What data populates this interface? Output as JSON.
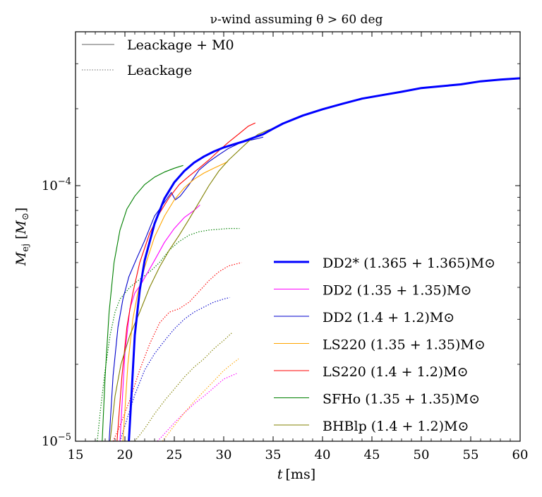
{
  "chart_data": {
    "type": "line",
    "title": "ν-wind assuming θ > 60 deg",
    "xlabel": "t [ms]",
    "ylabel": "M_ej [M⊙]",
    "ylabel_main": "M",
    "ylabel_sub": "ej",
    "ylabel_unit_open": "[",
    "ylabel_unit_main": "M",
    "ylabel_unit_sub": "⊙",
    "ylabel_unit_close": "]",
    "xlim": [
      15,
      60
    ],
    "ylim": [
      1e-05,
      0.0004
    ],
    "yscale": "log",
    "x_ticks": [
      15,
      20,
      25,
      30,
      35,
      40,
      45,
      50,
      55,
      60
    ],
    "y_ticks": [
      {
        "value": 1e-05,
        "base": "10",
        "exp": "−5"
      },
      {
        "value": 0.0001,
        "base": "10",
        "exp": "−4"
      }
    ],
    "style_legend": {
      "placement": "upper-left",
      "entries": [
        {
          "label": "Leackage + M0",
          "style": "solid",
          "color": "#808080"
        },
        {
          "label": "Leackage",
          "style": "dotted",
          "color": "#808080"
        }
      ]
    },
    "legend_placement": "lower-right",
    "series": [
      {
        "name": "DD2* (1.365 + 1.365)M⊙",
        "color": "#0000ff",
        "bold": true,
        "solid": [
          [
            20.4,
            1e-05
          ],
          [
            20.7,
            1.6e-05
          ],
          [
            21.0,
            2.6e-05
          ],
          [
            21.5,
            3.9e-05
          ],
          [
            22.0,
            5.1e-05
          ],
          [
            23.0,
            7.1e-05
          ],
          [
            24.0,
            8.9e-05
          ],
          [
            25.0,
            0.000103
          ],
          [
            26.0,
            0.000114
          ],
          [
            27.0,
            0.000123
          ],
          [
            28.0,
            0.00013
          ],
          [
            29.0,
            0.000136
          ],
          [
            30.0,
            0.000141
          ],
          [
            31.0,
            0.000145
          ],
          [
            32.0,
            0.000149
          ],
          [
            33.0,
            0.000154
          ],
          [
            34.0,
            0.000159
          ],
          [
            35.0,
            0.000167
          ],
          [
            36.0,
            0.000175
          ],
          [
            38.0,
            0.000188
          ],
          [
            40.0,
            0.000199
          ],
          [
            42.0,
            0.000209
          ],
          [
            44.0,
            0.000219
          ],
          [
            46.0,
            0.000226
          ],
          [
            48.0,
            0.000233
          ],
          [
            50.0,
            0.000241
          ],
          [
            52.0,
            0.000245
          ],
          [
            54.0,
            0.000249
          ],
          [
            56.0,
            0.000256
          ],
          [
            58.0,
            0.00026
          ],
          [
            60.0,
            0.000263
          ]
        ],
        "dotted": []
      },
      {
        "name": "DD2 (1.35 + 1.35)M⊙",
        "color": "#ff00ff",
        "bold": false,
        "solid": [
          [
            19.5,
            1e-05
          ],
          [
            20.0,
            2.2e-05
          ],
          [
            20.5,
            3.3e-05
          ],
          [
            21.0,
            3.8e-05
          ],
          [
            21.6,
            4.1e-05
          ],
          [
            22.2,
            4.5e-05
          ],
          [
            23.0,
            5.1e-05
          ],
          [
            24.0,
            6e-05
          ],
          [
            25.0,
            6.8e-05
          ],
          [
            26.0,
            7.5e-05
          ],
          [
            27.0,
            8e-05
          ],
          [
            27.6,
            8.4e-05
          ]
        ],
        "dotted": [
          [
            23.3,
            1e-05
          ],
          [
            24.0,
            1.07e-05
          ],
          [
            25.0,
            1.18e-05
          ],
          [
            26.0,
            1.29e-05
          ],
          [
            27.0,
            1.4e-05
          ],
          [
            28.0,
            1.5e-05
          ],
          [
            29.0,
            1.62e-05
          ],
          [
            30.0,
            1.75e-05
          ],
          [
            31.3,
            1.84e-05
          ]
        ]
      },
      {
        "name": "DD2 (1.4 + 1.2)M⊙",
        "color": "#0000cc",
        "bold": false,
        "solid": [
          [
            18.4,
            1e-05
          ],
          [
            18.8,
            1.8e-05
          ],
          [
            19.3,
            2.8e-05
          ],
          [
            19.8,
            3.6e-05
          ],
          [
            20.4,
            4.4e-05
          ],
          [
            21.2,
            5.2e-05
          ],
          [
            22.0,
            6.1e-05
          ],
          [
            23.0,
            7.6e-05
          ],
          [
            24.0,
            8.6e-05
          ],
          [
            24.7,
            9.4e-05
          ],
          [
            25.1,
            8.8e-05
          ],
          [
            25.6,
            9.1e-05
          ],
          [
            26.5,
            0.000101
          ],
          [
            27.5,
            0.000115
          ],
          [
            28.5,
            0.000124
          ],
          [
            29.5,
            0.000132
          ],
          [
            30.5,
            0.00014
          ],
          [
            31.5,
            0.000146
          ],
          [
            32.5,
            0.00015
          ],
          [
            33.5,
            0.000153
          ],
          [
            34.0,
            0.000155
          ]
        ],
        "dotted": [
          [
            19.5,
            1e-05
          ],
          [
            20.0,
            1.15e-05
          ],
          [
            21.0,
            1.52e-05
          ],
          [
            22.0,
            1.9e-05
          ],
          [
            23.0,
            2.2e-05
          ],
          [
            24.0,
            2.47e-05
          ],
          [
            25.0,
            2.75e-05
          ],
          [
            26.0,
            3e-05
          ],
          [
            27.0,
            3.2e-05
          ],
          [
            28.0,
            3.35e-05
          ],
          [
            29.0,
            3.5e-05
          ],
          [
            30.0,
            3.6e-05
          ],
          [
            30.6,
            3.65e-05
          ]
        ]
      },
      {
        "name": "LS220 (1.35 + 1.35)M⊙",
        "color": "#ffa500",
        "bold": false,
        "solid": [
          [
            19.8,
            1e-05
          ],
          [
            20.3,
            2e-05
          ],
          [
            20.8,
            3e-05
          ],
          [
            21.3,
            3.8e-05
          ],
          [
            22.0,
            4.8e-05
          ],
          [
            23.0,
            6.3e-05
          ],
          [
            24.0,
            7.6e-05
          ],
          [
            25.0,
            8.8e-05
          ],
          [
            26.0,
            9.8e-05
          ],
          [
            27.0,
            0.000106
          ],
          [
            28.0,
            0.000112
          ],
          [
            29.0,
            0.000117
          ],
          [
            30.0,
            0.000122
          ],
          [
            30.4,
            0.000124
          ]
        ],
        "dotted": [
          [
            23.8,
            1e-05
          ],
          [
            25.0,
            1.15e-05
          ],
          [
            26.0,
            1.29e-05
          ],
          [
            27.0,
            1.43e-05
          ],
          [
            28.0,
            1.57e-05
          ],
          [
            29.0,
            1.72e-05
          ],
          [
            30.0,
            1.89e-05
          ],
          [
            31.0,
            2.03e-05
          ],
          [
            31.5,
            2.1e-05
          ]
        ]
      },
      {
        "name": "LS220 (1.4 + 1.2)M⊙",
        "color": "#ff0000",
        "bold": false,
        "solid": [
          [
            19.2,
            1e-05
          ],
          [
            19.7,
            1.8e-05
          ],
          [
            20.2,
            2.8e-05
          ],
          [
            20.8,
            3.8e-05
          ],
          [
            21.5,
            5e-05
          ],
          [
            22.5,
            6.5e-05
          ],
          [
            23.5,
            7.8e-05
          ],
          [
            24.5,
            9e-05
          ],
          [
            25.5,
            0.000101
          ],
          [
            26.5,
            0.000109
          ],
          [
            27.5,
            0.000117
          ],
          [
            28.5,
            0.000126
          ],
          [
            29.5,
            0.000137
          ],
          [
            30.5,
            0.000148
          ],
          [
            31.5,
            0.000159
          ],
          [
            32.5,
            0.000171
          ],
          [
            33.2,
            0.000176
          ]
        ],
        "dotted": [
          [
            18.8,
            1e-05
          ],
          [
            19.5,
            1.15e-05
          ],
          [
            20.5,
            1.45e-05
          ],
          [
            21.5,
            1.9e-05
          ],
          [
            22.5,
            2.4e-05
          ],
          [
            23.5,
            2.9e-05
          ],
          [
            24.5,
            3.2e-05
          ],
          [
            25.5,
            3.3e-05
          ],
          [
            26.5,
            3.5e-05
          ],
          [
            27.5,
            3.85e-05
          ],
          [
            28.5,
            4.25e-05
          ],
          [
            29.5,
            4.6e-05
          ],
          [
            30.5,
            4.85e-05
          ],
          [
            31.8,
            5e-05
          ]
        ]
      },
      {
        "name": "SFHo (1.35 + 1.35)M⊙",
        "color": "#008000",
        "bold": false,
        "solid": [
          [
            17.7,
            1e-05
          ],
          [
            18.0,
            1.8e-05
          ],
          [
            18.4,
            3.2e-05
          ],
          [
            18.9,
            5e-05
          ],
          [
            19.5,
            6.7e-05
          ],
          [
            20.2,
            8.1e-05
          ],
          [
            21.0,
            9.1e-05
          ],
          [
            22.0,
            0.000101
          ],
          [
            23.0,
            0.000108
          ],
          [
            24.0,
            0.000113
          ],
          [
            25.0,
            0.000117
          ],
          [
            25.9,
            0.00012
          ]
        ],
        "dotted": [
          [
            17.2,
            1e-05
          ],
          [
            17.5,
            1.3e-05
          ],
          [
            18.0,
            1.9e-05
          ],
          [
            18.5,
            2.6e-05
          ],
          [
            19.0,
            3.2e-05
          ],
          [
            19.5,
            3.6e-05
          ],
          [
            20.5,
            4e-05
          ],
          [
            21.5,
            4.3e-05
          ],
          [
            22.5,
            4.6e-05
          ],
          [
            23.5,
            5e-05
          ],
          [
            24.5,
            5.6e-05
          ],
          [
            25.5,
            6.05e-05
          ],
          [
            26.5,
            6.4e-05
          ],
          [
            27.5,
            6.6e-05
          ],
          [
            28.5,
            6.7e-05
          ],
          [
            29.5,
            6.75e-05
          ],
          [
            30.5,
            6.8e-05
          ],
          [
            31.6,
            6.8e-05
          ]
        ]
      },
      {
        "name": "BHBlp (1.4 + 1.2)M⊙",
        "color": "#808000",
        "bold": false,
        "solid": [
          [
            18.5,
            1e-05
          ],
          [
            19.0,
            1.5e-05
          ],
          [
            19.6,
            2e-05
          ],
          [
            20.5,
            2.6e-05
          ],
          [
            21.5,
            3.2e-05
          ],
          [
            22.5,
            4e-05
          ],
          [
            23.5,
            4.8e-05
          ],
          [
            24.5,
            5.6e-05
          ],
          [
            25.5,
            6.4e-05
          ],
          [
            26.5,
            7.4e-05
          ],
          [
            27.5,
            8.6e-05
          ],
          [
            28.5,
            0.0001
          ],
          [
            29.5,
            0.000114
          ],
          [
            30.5,
            0.000126
          ],
          [
            31.5,
            0.000137
          ],
          [
            32.5,
            0.000149
          ],
          [
            33.5,
            0.000159
          ],
          [
            34.5,
            0.000165
          ],
          [
            35.3,
            0.000169
          ]
        ],
        "dotted": [
          [
            21.0,
            1e-05
          ],
          [
            22.0,
            1.12e-05
          ],
          [
            23.0,
            1.28e-05
          ],
          [
            24.0,
            1.44e-05
          ],
          [
            25.0,
            1.6e-05
          ],
          [
            26.0,
            1.78e-05
          ],
          [
            27.0,
            1.95e-05
          ],
          [
            28.0,
            2.1e-05
          ],
          [
            29.0,
            2.3e-05
          ],
          [
            30.0,
            2.48e-05
          ],
          [
            30.8,
            2.65e-05
          ]
        ]
      }
    ]
  }
}
